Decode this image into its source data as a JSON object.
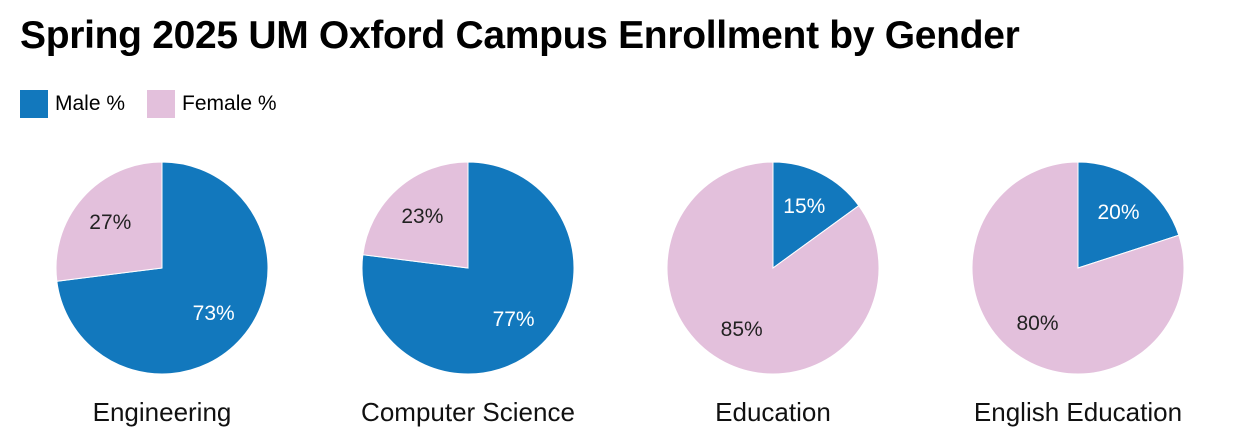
{
  "chart_data": {
    "type": "pie",
    "title": "Spring 2025 UM Oxford Campus Enrollment by Gender",
    "legend": {
      "placement": "top-left",
      "entries": [
        {
          "name": "Male %",
          "color": "#1278bd"
        },
        {
          "name": "Female %",
          "color": "#e3c0dc"
        }
      ]
    },
    "pies": [
      {
        "category": "Engineering",
        "male": 73,
        "female": 27,
        "male_label": "73%",
        "female_label": "27%"
      },
      {
        "category": "Computer Science",
        "male": 77,
        "female": 23,
        "male_label": "77%",
        "female_label": "23%"
      },
      {
        "category": "Education",
        "male": 15,
        "female": 85,
        "male_label": "15%",
        "female_label": "85%"
      },
      {
        "category": "English Education",
        "male": 20,
        "female": 80,
        "male_label": "20%",
        "female_label": "80%"
      }
    ],
    "colors": {
      "male": "#1278bd",
      "female": "#e3c0dc",
      "label_on_male": "#ffffff",
      "label_on_female": "#222222"
    }
  }
}
